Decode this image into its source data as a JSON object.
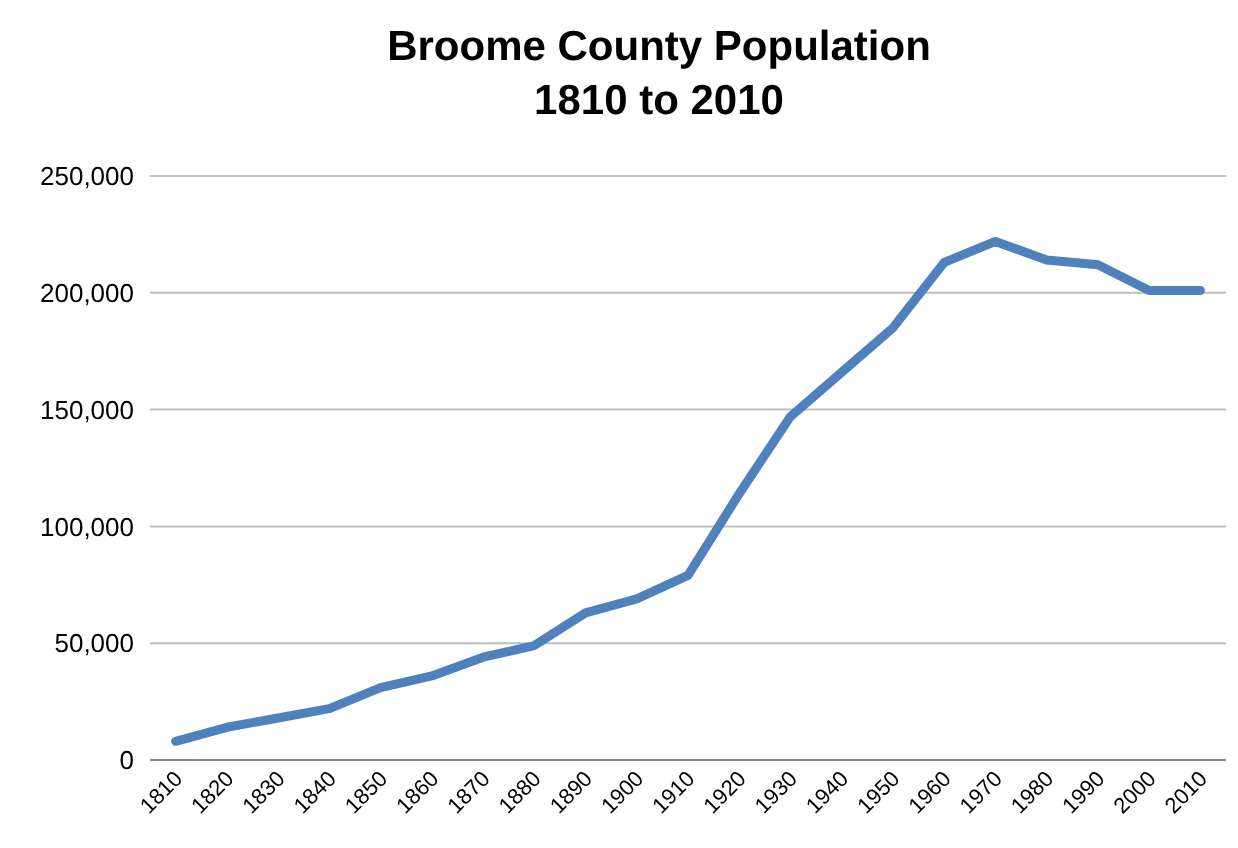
{
  "chart_data": {
    "type": "line",
    "title": "Broome County Population\n1810 to 2010",
    "categories": [
      "1810",
      "1820",
      "1830",
      "1840",
      "1850",
      "1860",
      "1870",
      "1880",
      "1890",
      "1900",
      "1910",
      "1920",
      "1930",
      "1940",
      "1950",
      "1960",
      "1970",
      "1980",
      "1990",
      "2000",
      "2010"
    ],
    "series": [
      {
        "color": "#4f81bd",
        "values": [
          8000,
          14000,
          18000,
          22000,
          31000,
          36000,
          44000,
          49000,
          63000,
          69000,
          79000,
          114000,
          147000,
          166000,
          185000,
          213000,
          222000,
          214000,
          212000,
          201000,
          201000
        ]
      }
    ],
    "ylim": [
      0,
      250000
    ],
    "yticks": [
      {
        "value": 0,
        "label": "0"
      },
      {
        "value": 50000,
        "label": "50,000"
      },
      {
        "value": 100000,
        "label": "100,000"
      },
      {
        "value": 150000,
        "label": "150,000"
      },
      {
        "value": 200000,
        "label": "200,000"
      },
      {
        "value": 250000,
        "label": "250,000"
      }
    ],
    "grid": "y",
    "marker": "none",
    "line_style": "solid"
  }
}
